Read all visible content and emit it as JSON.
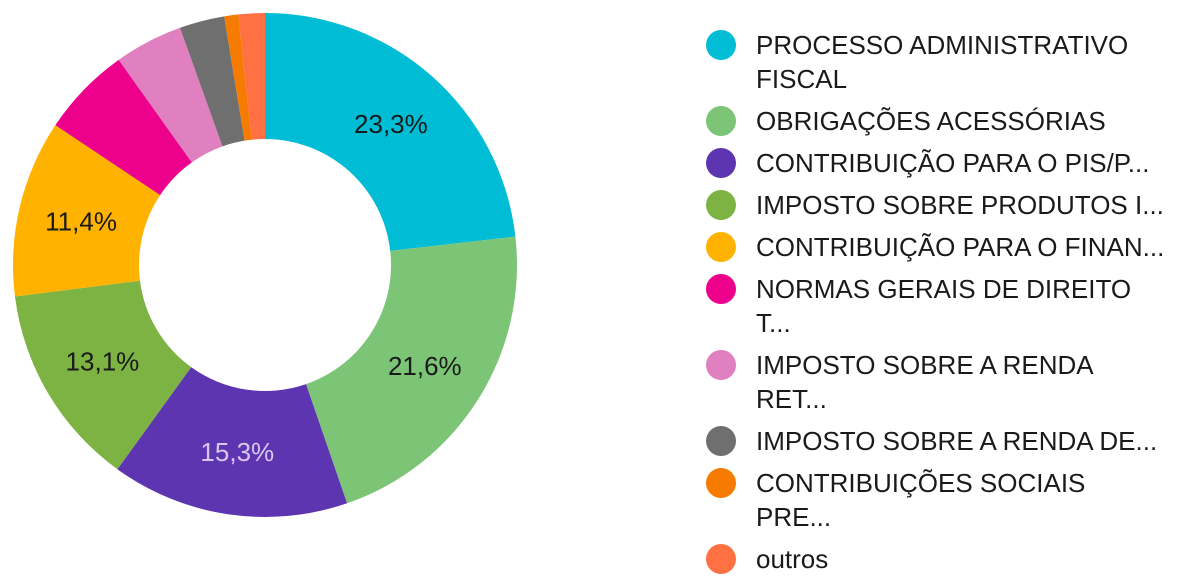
{
  "chart_data": {
    "type": "pie",
    "categories": [
      "PROCESSO ADMINISTRATIVO FISCAL",
      "OBRIGAÇÕES ACESSÓRIAS",
      "CONTRIBUIÇÃO PARA O PIS/P...",
      "IMPOSTO SOBRE PRODUTOS I...",
      "CONTRIBUIÇÃO PARA O FINAN...",
      "NORMAS GERAIS DE DIREITO T...",
      "IMPOSTO SOBRE A RENDA RET...",
      "IMPOSTO SOBRE A RENDA DE...",
      "CONTRIBUIÇÕES SOCIAIS PRE...",
      "outros"
    ],
    "values": [
      23.3,
      21.6,
      15.3,
      13.1,
      11.4,
      5.8,
      4.4,
      2.9,
      0.9,
      1.7
    ],
    "data_labels": [
      "23,3%",
      "21,6%",
      "15,3%",
      "13,1%",
      "11,4%",
      "",
      "",
      "",
      "",
      ""
    ],
    "colors": [
      "#00bcd4",
      "#7cc576",
      "#5e35b1",
      "#7cb342",
      "#ffb300",
      "#ec008c",
      "#e080c0",
      "#6f6f6f",
      "#f57c00",
      "#ff7043"
    ],
    "label_colors": [
      "#1a1a1a",
      "#1a1a1a",
      "#d7c7ee",
      "#1a1a1a",
      "#1a1a1a",
      "#ffffff",
      "#ffffff",
      "#ffffff",
      "#ffffff",
      "#ffffff"
    ],
    "donut": true,
    "legend_position": "right"
  }
}
